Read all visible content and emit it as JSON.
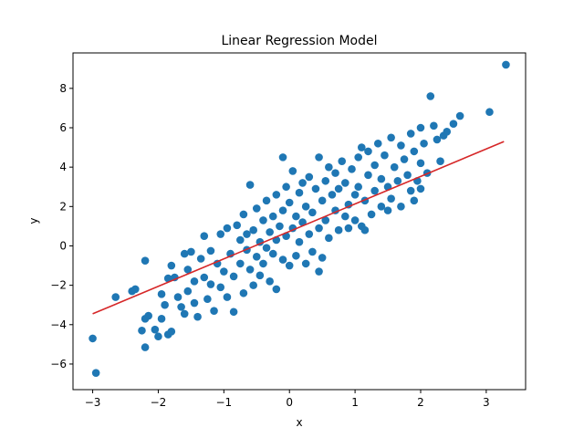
{
  "chart_data": {
    "type": "scatter",
    "title": "Linear Regression Model",
    "xlabel": "x",
    "ylabel": "y",
    "xlim": [
      -3.3,
      3.6
    ],
    "ylim": [
      -7.3,
      9.8
    ],
    "xticks": [
      -3,
      -2,
      -1,
      0,
      1,
      2,
      3
    ],
    "yticks": [
      -6,
      -4,
      -2,
      0,
      2,
      4,
      6,
      8
    ],
    "grid": false,
    "legend": "none",
    "series": [
      {
        "kind": "scatter",
        "color": "#1f77b4",
        "points": [
          [
            -2.95,
            -6.45
          ],
          [
            -3.0,
            -4.7
          ],
          [
            -2.2,
            -5.15
          ],
          [
            -2.2,
            -0.75
          ],
          [
            -2.65,
            -2.6
          ],
          [
            -2.35,
            -2.2
          ],
          [
            -2.4,
            -2.3
          ],
          [
            -2.25,
            -4.3
          ],
          [
            -2.2,
            -3.7
          ],
          [
            -2.15,
            -3.55
          ],
          [
            -2.05,
            -4.25
          ],
          [
            -2.0,
            -4.6
          ],
          [
            -1.95,
            -3.7
          ],
          [
            -1.85,
            -4.5
          ],
          [
            -1.8,
            -4.35
          ],
          [
            -1.9,
            -3.0
          ],
          [
            -1.95,
            -2.45
          ],
          [
            -1.85,
            -1.65
          ],
          [
            -1.75,
            -1.6
          ],
          [
            -1.7,
            -2.6
          ],
          [
            -1.65,
            -3.1
          ],
          [
            -1.6,
            -3.45
          ],
          [
            -1.55,
            -2.3
          ],
          [
            -1.55,
            -1.2
          ],
          [
            -1.5,
            -0.3
          ],
          [
            -1.45,
            -1.8
          ],
          [
            -1.45,
            -2.9
          ],
          [
            -1.4,
            -3.6
          ],
          [
            -1.35,
            -0.65
          ],
          [
            -1.3,
            -1.6
          ],
          [
            -1.25,
            -2.7
          ],
          [
            -1.2,
            -0.25
          ],
          [
            -1.2,
            -1.95
          ],
          [
            -1.15,
            -3.3
          ],
          [
            -1.1,
            -0.9
          ],
          [
            -1.05,
            -2.1
          ],
          [
            -1.05,
            0.6
          ],
          [
            -1.0,
            -1.3
          ],
          [
            -0.95,
            -2.6
          ],
          [
            -0.95,
            0.9
          ],
          [
            -0.9,
            -0.4
          ],
          [
            -0.85,
            -1.55
          ],
          [
            -0.85,
            -3.35
          ],
          [
            -0.8,
            1.05
          ],
          [
            -0.75,
            0.3
          ],
          [
            -0.75,
            -0.9
          ],
          [
            -0.7,
            -2.4
          ],
          [
            -0.7,
            1.6
          ],
          [
            -0.65,
            -0.2
          ],
          [
            -0.6,
            -1.2
          ],
          [
            -0.6,
            3.1
          ],
          [
            -0.55,
            0.8
          ],
          [
            -0.55,
            -2.0
          ],
          [
            -0.5,
            1.9
          ],
          [
            -0.5,
            -0.55
          ],
          [
            -0.45,
            0.2
          ],
          [
            -0.45,
            -1.5
          ],
          [
            -0.4,
            1.3
          ],
          [
            -0.4,
            -0.9
          ],
          [
            -0.35,
            2.3
          ],
          [
            -0.35,
            -0.1
          ],
          [
            -0.3,
            0.7
          ],
          [
            -0.3,
            -1.8
          ],
          [
            -0.25,
            1.5
          ],
          [
            -0.25,
            -0.4
          ],
          [
            -0.2,
            2.6
          ],
          [
            -0.2,
            0.3
          ],
          [
            -0.2,
            -2.2
          ],
          [
            -0.15,
            1.0
          ],
          [
            -0.1,
            -0.7
          ],
          [
            -0.1,
            1.8
          ],
          [
            -0.05,
            3.0
          ],
          [
            -0.05,
            0.5
          ],
          [
            0.0,
            -1.0
          ],
          [
            0.0,
            2.2
          ],
          [
            0.05,
            0.9
          ],
          [
            0.05,
            3.8
          ],
          [
            0.1,
            1.5
          ],
          [
            0.1,
            -0.5
          ],
          [
            0.15,
            2.7
          ],
          [
            0.15,
            0.2
          ],
          [
            0.2,
            3.2
          ],
          [
            0.2,
            1.2
          ],
          [
            0.25,
            -0.9
          ],
          [
            0.25,
            2.0
          ],
          [
            0.3,
            0.6
          ],
          [
            0.3,
            3.5
          ],
          [
            0.35,
            1.7
          ],
          [
            0.35,
            -0.3
          ],
          [
            0.4,
            2.9
          ],
          [
            0.45,
            0.9
          ],
          [
            0.45,
            4.5
          ],
          [
            0.5,
            2.3
          ],
          [
            0.5,
            -0.6
          ],
          [
            0.55,
            3.3
          ],
          [
            0.55,
            1.3
          ],
          [
            0.6,
            4.0
          ],
          [
            0.6,
            0.4
          ],
          [
            0.65,
            2.6
          ],
          [
            0.7,
            1.8
          ],
          [
            0.7,
            3.7
          ],
          [
            0.75,
            0.8
          ],
          [
            0.75,
            2.9
          ],
          [
            0.8,
            4.3
          ],
          [
            0.85,
            1.5
          ],
          [
            0.85,
            3.2
          ],
          [
            0.9,
            2.1
          ],
          [
            0.9,
            0.9
          ],
          [
            0.95,
            3.9
          ],
          [
            1.0,
            2.6
          ],
          [
            1.0,
            1.3
          ],
          [
            1.05,
            4.5
          ],
          [
            1.05,
            3.0
          ],
          [
            1.1,
            1.0
          ],
          [
            1.1,
            5.0
          ],
          [
            1.15,
            2.3
          ],
          [
            1.2,
            3.6
          ],
          [
            1.2,
            4.8
          ],
          [
            1.25,
            1.6
          ],
          [
            1.3,
            4.1
          ],
          [
            1.3,
            2.8
          ],
          [
            1.35,
            5.2
          ],
          [
            1.4,
            3.4
          ],
          [
            1.4,
            2.0
          ],
          [
            1.45,
            4.6
          ],
          [
            1.5,
            3.0
          ],
          [
            1.55,
            5.5
          ],
          [
            1.55,
            2.4
          ],
          [
            1.6,
            4.0
          ],
          [
            1.65,
            3.3
          ],
          [
            1.7,
            5.1
          ],
          [
            1.7,
            2.0
          ],
          [
            1.75,
            4.4
          ],
          [
            1.8,
            3.6
          ],
          [
            1.85,
            5.7
          ],
          [
            1.85,
            2.8
          ],
          [
            1.9,
            4.8
          ],
          [
            1.95,
            3.3
          ],
          [
            2.0,
            6.0
          ],
          [
            2.0,
            4.2
          ],
          [
            2.05,
            5.2
          ],
          [
            2.1,
            3.7
          ],
          [
            2.15,
            7.6
          ],
          [
            2.2,
            6.1
          ],
          [
            2.25,
            5.4
          ],
          [
            2.3,
            4.3
          ],
          [
            2.35,
            5.6
          ],
          [
            2.4,
            5.8
          ],
          [
            2.5,
            6.2
          ],
          [
            2.6,
            6.6
          ],
          [
            2.0,
            2.9
          ],
          [
            1.5,
            1.8
          ],
          [
            1.9,
            2.3
          ],
          [
            1.15,
            0.8
          ],
          [
            -0.65,
            0.6
          ],
          [
            -1.3,
            0.5
          ],
          [
            -1.6,
            -0.4
          ],
          [
            -1.8,
            -1.0
          ],
          [
            -0.1,
            4.5
          ],
          [
            0.45,
            -1.3
          ],
          [
            3.05,
            6.8
          ],
          [
            3.3,
            9.2
          ]
        ]
      },
      {
        "kind": "line",
        "color": "#d62728",
        "points": [
          [
            -3.0,
            -3.45
          ],
          [
            3.27,
            5.3
          ]
        ]
      }
    ]
  }
}
